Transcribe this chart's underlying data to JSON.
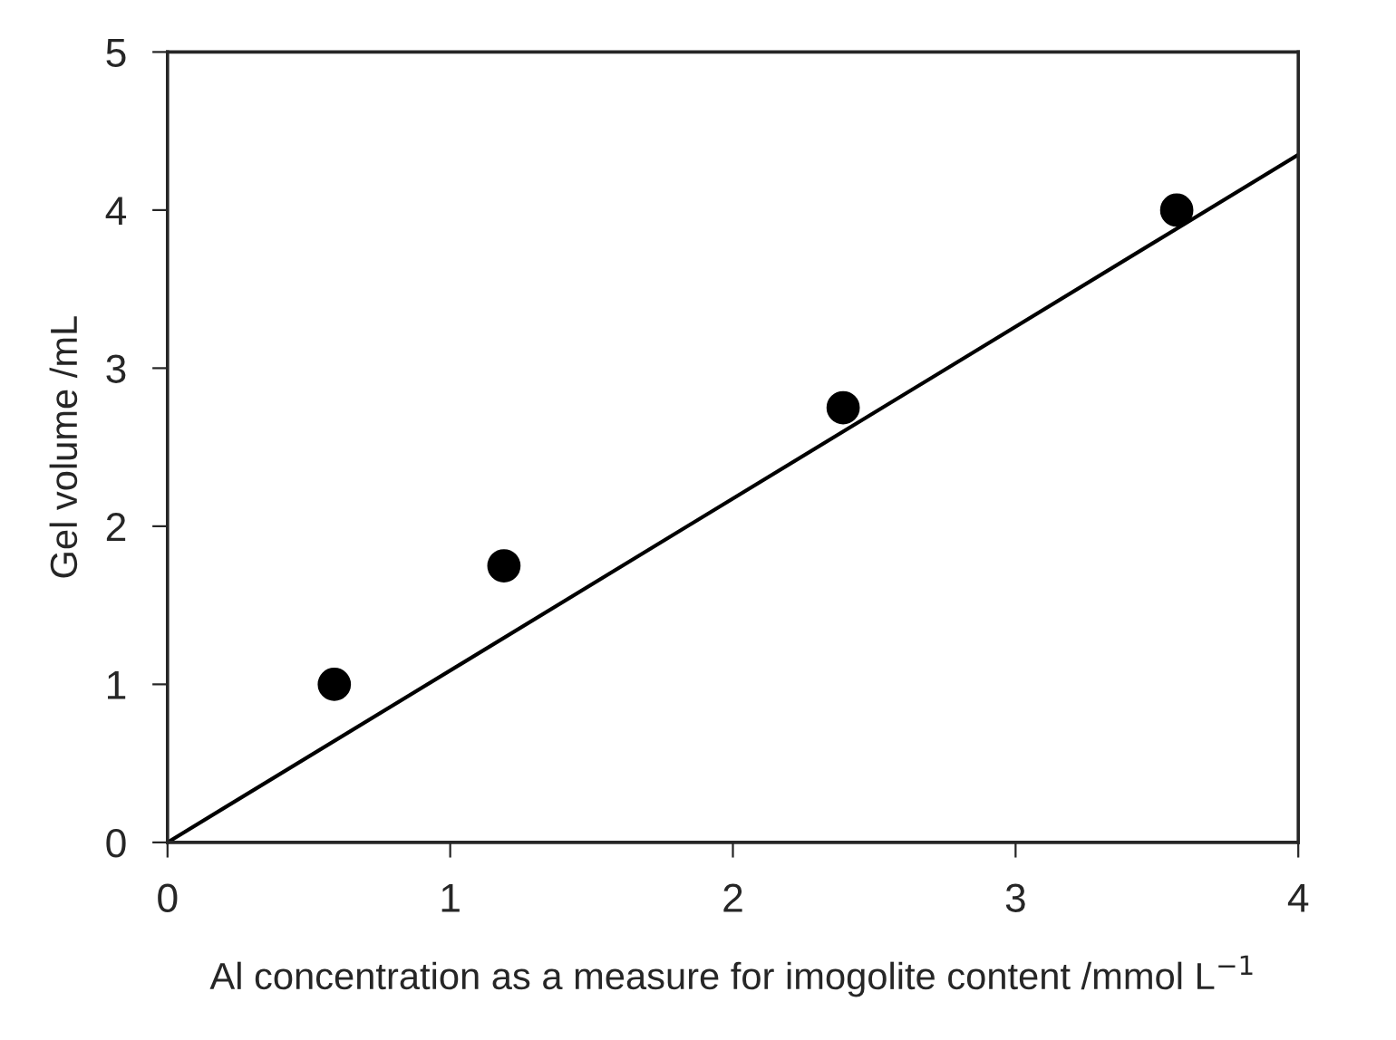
{
  "chart_data": {
    "type": "scatter",
    "xlabel": "Al concentration as a measure for imogolite content /mmol L$^{−1}$",
    "ylabel": "Gel volume /mL",
    "xlim": [
      0,
      4
    ],
    "ylim": [
      0,
      5
    ],
    "xticks": [
      0,
      1,
      2,
      3,
      4
    ],
    "yticks": [
      0,
      1,
      2,
      3,
      4,
      5
    ],
    "grid": false,
    "legend": false,
    "series": [
      {
        "marker": "circle",
        "color": "#000000",
        "x": [
          0.59,
          1.19,
          2.39,
          3.57
        ],
        "values": [
          1.0,
          1.75,
          2.75,
          4.0
        ]
      },
      {
        "type": "line",
        "color": "#000000",
        "line_style": "solid",
        "x": [
          0,
          4
        ],
        "values": [
          0,
          4.35
        ]
      }
    ]
  }
}
